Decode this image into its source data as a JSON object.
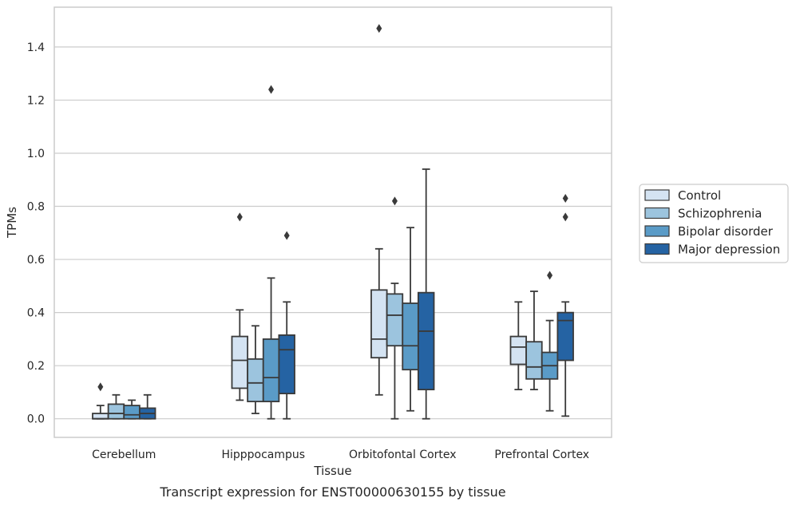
{
  "chart_data": {
    "type": "boxplot",
    "caption": "Transcript expression for ENST00000630155 by tissue",
    "xlabel": "Tissue",
    "ylabel": "TPMs",
    "ylim": [
      -0.07,
      1.55
    ],
    "yticks": [
      0.0,
      0.2,
      0.4,
      0.6,
      0.8,
      1.0,
      1.2,
      1.4
    ],
    "ytick_labels": [
      "0.0",
      "0.2",
      "0.4",
      "0.6",
      "0.8",
      "1.0",
      "1.2",
      "1.4"
    ],
    "grid": "horizontal",
    "legend_position": "right",
    "categories": [
      "Cerebellum",
      "Hipppocampus",
      "Orbitofontal Cortex",
      "Prefrontal Cortex"
    ],
    "series": [
      {
        "name": "Control",
        "color": "#d4e3f2",
        "boxes": [
          {
            "whislo": 0.0,
            "q1": 0.0,
            "med": 0.0,
            "q3": 0.02,
            "whishi": 0.05,
            "fliers": [
              0.12
            ]
          },
          {
            "whislo": 0.07,
            "q1": 0.115,
            "med": 0.22,
            "q3": 0.31,
            "whishi": 0.41,
            "fliers": [
              0.76
            ]
          },
          {
            "whislo": 0.09,
            "q1": 0.23,
            "med": 0.3,
            "q3": 0.485,
            "whishi": 0.64,
            "fliers": [
              1.47
            ]
          },
          {
            "whislo": 0.11,
            "q1": 0.205,
            "med": 0.27,
            "q3": 0.31,
            "whishi": 0.44,
            "fliers": []
          }
        ]
      },
      {
        "name": "Schizophrenia",
        "color": "#9cc4de",
        "boxes": [
          {
            "whislo": 0.0,
            "q1": 0.0,
            "med": 0.02,
            "q3": 0.055,
            "whishi": 0.09,
            "fliers": []
          },
          {
            "whislo": 0.02,
            "q1": 0.065,
            "med": 0.135,
            "q3": 0.225,
            "whishi": 0.35,
            "fliers": []
          },
          {
            "whislo": 0.0,
            "q1": 0.275,
            "med": 0.39,
            "q3": 0.47,
            "whishi": 0.51,
            "fliers": [
              0.82
            ]
          },
          {
            "whislo": 0.11,
            "q1": 0.15,
            "med": 0.195,
            "q3": 0.29,
            "whishi": 0.48,
            "fliers": []
          }
        ]
      },
      {
        "name": "Bipolar disorder",
        "color": "#5a9bc7",
        "boxes": [
          {
            "whislo": 0.0,
            "q1": 0.0,
            "med": 0.015,
            "q3": 0.05,
            "whishi": 0.07,
            "fliers": []
          },
          {
            "whislo": 0.0,
            "q1": 0.065,
            "med": 0.155,
            "q3": 0.3,
            "whishi": 0.53,
            "fliers": [
              1.24
            ]
          },
          {
            "whislo": 0.03,
            "q1": 0.185,
            "med": 0.275,
            "q3": 0.435,
            "whishi": 0.72,
            "fliers": []
          },
          {
            "whislo": 0.03,
            "q1": 0.15,
            "med": 0.2,
            "q3": 0.25,
            "whishi": 0.37,
            "fliers": [
              0.54
            ]
          }
        ]
      },
      {
        "name": "Major depression",
        "color": "#2563a3",
        "boxes": [
          {
            "whislo": 0.0,
            "q1": 0.0,
            "med": 0.02,
            "q3": 0.04,
            "whishi": 0.09,
            "fliers": []
          },
          {
            "whislo": 0.0,
            "q1": 0.095,
            "med": 0.26,
            "q3": 0.315,
            "whishi": 0.44,
            "fliers": [
              0.69
            ]
          },
          {
            "whislo": 0.0,
            "q1": 0.11,
            "med": 0.33,
            "q3": 0.475,
            "whishi": 0.94,
            "fliers": []
          },
          {
            "whislo": 0.01,
            "q1": 0.22,
            "med": 0.37,
            "q3": 0.4,
            "whishi": 0.44,
            "fliers": [
              0.76,
              0.83
            ]
          }
        ]
      }
    ]
  }
}
